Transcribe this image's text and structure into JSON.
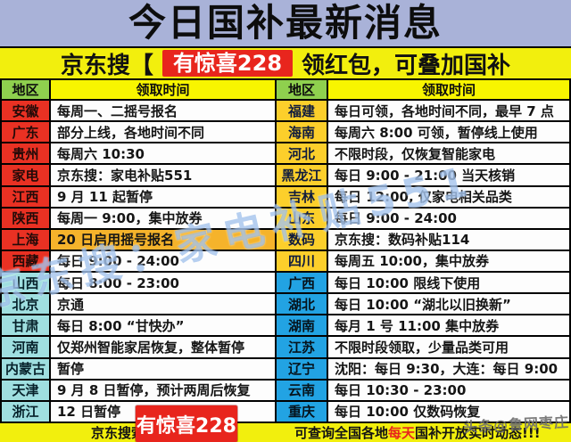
{
  "title": "今日国补最新消息",
  "promo_banner": {
    "prefix": "京东搜【",
    "badge": "有惊喜228",
    "suffix": "领红包，可叠加国补"
  },
  "table": {
    "headers": {
      "region": "地区",
      "time": "领取时间"
    },
    "left_rows": [
      {
        "region": "安徽",
        "time": "每周一、二摇号报名"
      },
      {
        "region": "广东",
        "time": "部分上线，各地时间不同"
      },
      {
        "region": "贵州",
        "time": "每周六 10:30"
      },
      {
        "region": "家电",
        "time": "京东搜：家电补贴551"
      },
      {
        "region": "江西",
        "time": "9 月 11 起暂停"
      },
      {
        "region": "陕西",
        "time": "每周一 9:00，集中放券"
      },
      {
        "region": "上海",
        "time": "20 日启用摇号报名"
      },
      {
        "region": "西藏",
        "time": "每日 9:00 - 24:00"
      },
      {
        "region": "山西",
        "time": "每日 8:00 - 23:00"
      },
      {
        "region": "北京",
        "time": "京通"
      },
      {
        "region": "甘肃",
        "time": "每日 8:00 “甘快办”"
      },
      {
        "region": "河南",
        "time": "仅郑州智能家居恢复，整体暂停"
      },
      {
        "region": "内蒙古",
        "time": "暂停"
      },
      {
        "region": "天津",
        "time": "9 月 8 日暂停，预计两周后恢复"
      },
      {
        "region": "浙江",
        "time": "12 日暂停"
      }
    ],
    "right_rows": [
      {
        "region": "福建",
        "time": "每日可领，各地时间不同，最早 7 点"
      },
      {
        "region": "海南",
        "time": "每周六 8:00 可领，暂停线上使用"
      },
      {
        "region": "河北",
        "time": "不限时段，仅恢复智能家电"
      },
      {
        "region": "黑龙江",
        "time": "每日 9:00 - 21:00  当天核销"
      },
      {
        "region": "吉林",
        "time": "每日 12:00, 仅家电相关品类"
      },
      {
        "region": "山东",
        "time": "每日 9:00 - 24:00"
      },
      {
        "region": "数码",
        "time": "京东搜：数码补贴114"
      },
      {
        "region": "四川",
        "time": "每周五 10:00，集中放券"
      },
      {
        "region": "广西",
        "time": "每日 10:00 限线下使用"
      },
      {
        "region": "湖北",
        "time": "每日 10:00 “湖北以旧换新”"
      },
      {
        "region": "湖南",
        "time": "每月 1 号 11:00 集中放券"
      },
      {
        "region": "江苏",
        "time": "不限时段领取，少量品类可用"
      },
      {
        "region": "辽宁",
        "time": "沈阳：每日 9:30，大连：每日 9:00"
      },
      {
        "region": "云南",
        "time": "每日 10:30 - 23:00"
      },
      {
        "region": "重庆",
        "time": "每日 10:00 仅数码恢复"
      }
    ]
  },
  "footer": {
    "prefix": "京东搜索",
    "badge": "有惊喜228",
    "before": "可查询全国各地",
    "highlight": "每天",
    "after": "国补开放实时动态!!!"
  },
  "watermarks": {
    "center": "京东搜：家电补贴551",
    "corner": "头条@鲁网枣庄"
  },
  "colors": {
    "title_bg": "#a9b2d8",
    "banner_yellow": "#f2ef0d",
    "badge_red": "#e8251d",
    "header_green": "#8fd04e",
    "header_yellow": "#f8f500",
    "region_red": "#e93123",
    "region_cyan": "#9fdfe0",
    "region_gold": "#fccf2b",
    "region_blue": "#22a3e3",
    "highlight_orange": "#f5b32b"
  }
}
